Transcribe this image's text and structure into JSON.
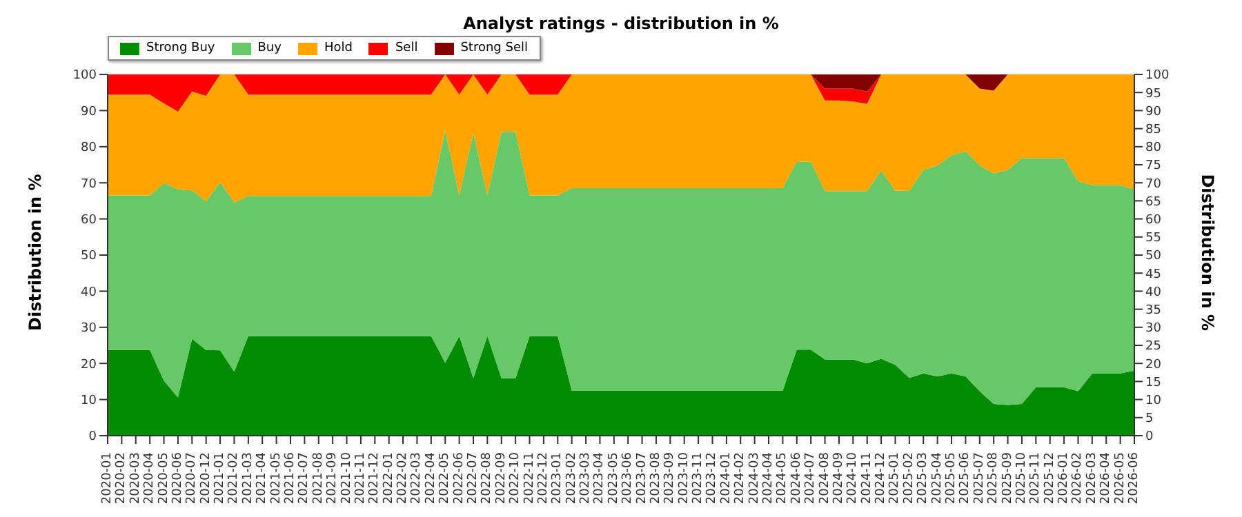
{
  "chart_data": {
    "type": "area",
    "stacked": true,
    "title": "Analyst ratings - distribution in %",
    "ylabel": "Distribution in %",
    "y2label": "Distribution in %",
    "categories": [
      "2020-01",
      "2020-02",
      "2020-03",
      "2020-04",
      "2020-05",
      "2020-06",
      "2020-07",
      "2020-12",
      "2021-01",
      "2021-02",
      "2021-03",
      "2021-04",
      "2021-05",
      "2021-06",
      "2021-07",
      "2021-08",
      "2021-09",
      "2021-10",
      "2021-11",
      "2021-12",
      "2022-01",
      "2022-02",
      "2022-03",
      "2022-04",
      "2022-05",
      "2022-06",
      "2022-07",
      "2022-08",
      "2022-09",
      "2022-10",
      "2022-11",
      "2022-12",
      "2023-01",
      "2023-02",
      "2023-03",
      "2023-04",
      "2023-05",
      "2023-06",
      "2023-07",
      "2023-08",
      "2023-09",
      "2023-10",
      "2023-11",
      "2023-12",
      "2024-01",
      "2024-02",
      "2024-03",
      "2024-04",
      "2024-05",
      "2024-06",
      "2024-07",
      "2024-08",
      "2024-09",
      "2024-10",
      "2024-11",
      "2024-12",
      "2025-01",
      "2025-02",
      "2025-03",
      "2025-04",
      "2025-05",
      "2025-06",
      "2025-07",
      "2025-08",
      "2025-09",
      "2025-10",
      "2025-11",
      "2025-12",
      "2026-01",
      "2026-02",
      "2026-03",
      "2026-04",
      "2026-05",
      "2026-06"
    ],
    "series": [
      {
        "name": "Strong Buy",
        "color": "#008c00",
        "values": [
          23.7,
          23.7,
          23.7,
          23.7,
          15.2,
          10.6,
          26.8,
          23.7,
          23.6,
          17.7,
          27.6,
          27.6,
          27.6,
          27.6,
          27.6,
          27.6,
          27.6,
          27.6,
          27.6,
          27.6,
          27.6,
          27.6,
          27.6,
          27.6,
          20.2,
          27.6,
          15.9,
          27.6,
          15.9,
          15.9,
          27.6,
          27.6,
          27.6,
          12.5,
          12.5,
          12.5,
          12.5,
          12.5,
          12.5,
          12.5,
          12.5,
          12.5,
          12.5,
          12.5,
          12.5,
          12.5,
          12.5,
          12.5,
          12.5,
          23.8,
          23.8,
          21.1,
          21.1,
          21.1,
          20.0,
          21.3,
          19.6,
          16.0,
          17.2,
          16.4,
          17.2,
          16.4,
          12.3,
          8.8,
          8.5,
          8.8,
          13.4,
          13.4,
          13.4,
          12.3,
          17.2,
          17.2,
          17.2,
          18.0
        ]
      },
      {
        "name": "Buy",
        "color": "#66c866",
        "values": [
          42.8,
          42.8,
          42.8,
          42.8,
          54.7,
          57.6,
          41.1,
          41.2,
          46.5,
          46.9,
          38.7,
          38.7,
          38.7,
          38.7,
          38.7,
          38.7,
          38.7,
          38.7,
          38.7,
          38.7,
          38.7,
          38.7,
          38.7,
          38.7,
          64.2,
          38.9,
          67.9,
          38.9,
          68.2,
          68.2,
          38.9,
          38.9,
          38.9,
          56.0,
          56.0,
          56.0,
          56.0,
          56.0,
          56.0,
          56.0,
          56.0,
          56.0,
          56.0,
          56.0,
          56.0,
          56.0,
          56.0,
          56.0,
          56.0,
          52.1,
          52.0,
          46.6,
          46.6,
          46.6,
          47.7,
          52.1,
          48.2,
          51.8,
          56.3,
          58.4,
          60.4,
          62.3,
          62.5,
          63.8,
          65.0,
          68.0,
          63.4,
          63.4,
          63.4,
          58.1,
          52.1,
          52.1,
          52.1,
          50.2
        ]
      },
      {
        "name": "Hold",
        "color": "#ffa500",
        "values": [
          27.9,
          27.9,
          27.9,
          27.9,
          22.1,
          21.5,
          27.4,
          29.2,
          29.9,
          35.4,
          28.1,
          28.1,
          28.1,
          28.1,
          28.1,
          28.1,
          28.1,
          28.1,
          28.1,
          28.1,
          28.1,
          28.1,
          28.1,
          28.1,
          15.6,
          27.9,
          16.2,
          27.9,
          15.9,
          15.9,
          27.9,
          27.9,
          27.9,
          31.5,
          31.5,
          31.5,
          31.5,
          31.5,
          31.5,
          31.5,
          31.5,
          31.5,
          31.5,
          31.5,
          31.5,
          31.5,
          31.5,
          31.5,
          31.5,
          24.1,
          24.2,
          25.1,
          25.1,
          24.8,
          24.2,
          26.6,
          32.2,
          32.2,
          26.5,
          25.2,
          22.4,
          21.3,
          21.3,
          22.9,
          26.5,
          23.2,
          23.2,
          23.2,
          23.2,
          29.6,
          30.7,
          30.7,
          30.7,
          31.8
        ]
      },
      {
        "name": "Sell",
        "color": "#ff0000",
        "values": [
          5.6,
          5.6,
          5.6,
          5.6,
          8.0,
          10.3,
          4.7,
          5.9,
          0,
          0,
          5.6,
          5.6,
          5.6,
          5.6,
          5.6,
          5.6,
          5.6,
          5.6,
          5.6,
          5.6,
          5.6,
          5.6,
          5.6,
          5.6,
          0,
          5.6,
          0,
          5.6,
          0,
          0,
          5.6,
          5.6,
          5.6,
          0,
          0,
          0,
          0,
          0,
          0,
          0,
          0,
          0,
          0,
          0,
          0,
          0,
          0,
          0,
          0,
          0,
          0,
          3.3,
          3.3,
          3.6,
          3.4,
          0,
          0,
          0,
          0,
          0,
          0,
          0,
          0,
          0,
          0,
          0,
          0,
          0,
          0,
          0,
          0,
          0,
          0,
          0
        ]
      },
      {
        "name": "Strong Sell",
        "color": "#800000",
        "values": [
          0,
          0,
          0,
          0,
          0,
          0,
          0,
          0,
          0,
          0,
          0,
          0,
          0,
          0,
          0,
          0,
          0,
          0,
          0,
          0,
          0,
          0,
          0,
          0,
          0,
          0,
          0,
          0,
          0,
          0,
          0,
          0,
          0,
          0,
          0,
          0,
          0,
          0,
          0,
          0,
          0,
          0,
          0,
          0,
          0,
          0,
          0,
          0,
          0,
          0,
          0,
          3.9,
          3.9,
          3.9,
          4.7,
          0,
          0,
          0,
          0,
          0,
          0,
          0,
          3.9,
          4.5,
          0,
          0,
          0,
          0,
          0,
          0,
          0,
          0,
          0,
          0
        ]
      }
    ],
    "ylim": [
      0,
      100
    ],
    "yticks": [
      0,
      10,
      20,
      30,
      40,
      50,
      60,
      70,
      80,
      90,
      100
    ],
    "y2lim": [
      0,
      100
    ],
    "y2ticks": [
      0,
      5,
      10,
      15,
      20,
      25,
      30,
      35,
      40,
      45,
      50,
      55,
      60,
      65,
      70,
      75,
      80,
      85,
      90,
      95,
      100
    ],
    "grid": "y",
    "legend": "top left"
  }
}
